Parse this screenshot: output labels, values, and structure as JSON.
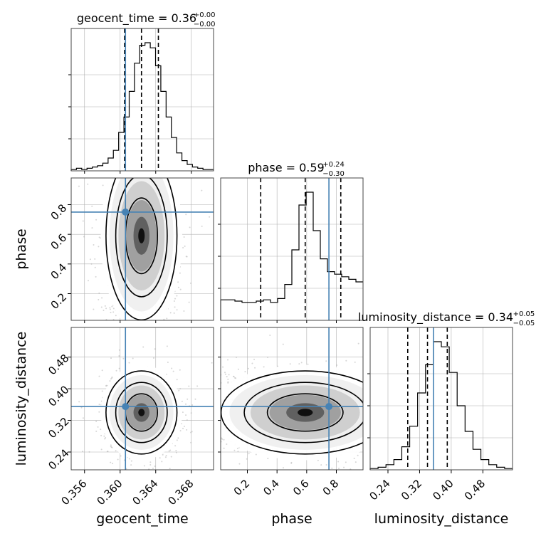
{
  "chart_data": {
    "type": "corner",
    "truth_color": "#4682b4",
    "parameters": [
      {
        "name": "geocent_time",
        "xlabel": "geocent_time",
        "range": [
          0.3545,
          0.3705
        ],
        "truth": 0.3606,
        "quantiles": [
          0.3605,
          0.3624,
          0.3643
        ],
        "title": {
          "main": "geocent_time = 0.36",
          "sup": "+0.00",
          "sub": "−0.00"
        },
        "ticks": [
          0.356,
          0.36,
          0.364,
          0.368
        ],
        "tick_labels": [
          "0.356",
          "0.360",
          "0.364",
          "0.368"
        ],
        "hist": [
          1,
          2,
          1,
          2,
          3,
          4,
          6,
          10,
          16,
          30,
          42,
          62,
          84,
          98,
          100,
          96,
          82,
          62,
          42,
          26,
          14,
          8,
          5,
          3,
          2,
          1,
          1
        ]
      },
      {
        "name": "phase",
        "xlabel": "phase",
        "ylabel": "phase",
        "range": [
          0.02,
          0.98
        ],
        "truth": 0.75,
        "quantiles": [
          0.29,
          0.59,
          0.83
        ],
        "title": {
          "main": "phase = 0.59",
          "sup": "+0.24",
          "sub": "−0.30"
        },
        "ticks": [
          0.2,
          0.4,
          0.6,
          0.8
        ],
        "tick_labels": [
          "0.2",
          "0.4",
          "0.6",
          "0.8"
        ],
        "hist": [
          16,
          16,
          15,
          14,
          14,
          15,
          16,
          14,
          17,
          28,
          55,
          90,
          100,
          70,
          48,
          38,
          36,
          34,
          32,
          30
        ]
      },
      {
        "name": "luminosity_distance",
        "xlabel": "luminosity_distance",
        "ylabel": "luminosity_distance",
        "range": [
          0.195,
          0.555
        ],
        "truth": 0.355,
        "quantiles": [
          0.29,
          0.34,
          0.39
        ],
        "title": {
          "main": "luminosity_distance = 0.34",
          "sup": "+0.05",
          "sub": "−0.05"
        },
        "ticks": [
          0.24,
          0.32,
          0.4,
          0.48
        ],
        "tick_labels": [
          "0.24",
          "0.32",
          "0.40",
          "0.48"
        ],
        "hist": [
          1,
          2,
          4,
          8,
          18,
          34,
          60,
          82,
          100,
          96,
          76,
          50,
          30,
          16,
          8,
          4,
          2,
          1
        ]
      }
    ],
    "grid": true
  }
}
